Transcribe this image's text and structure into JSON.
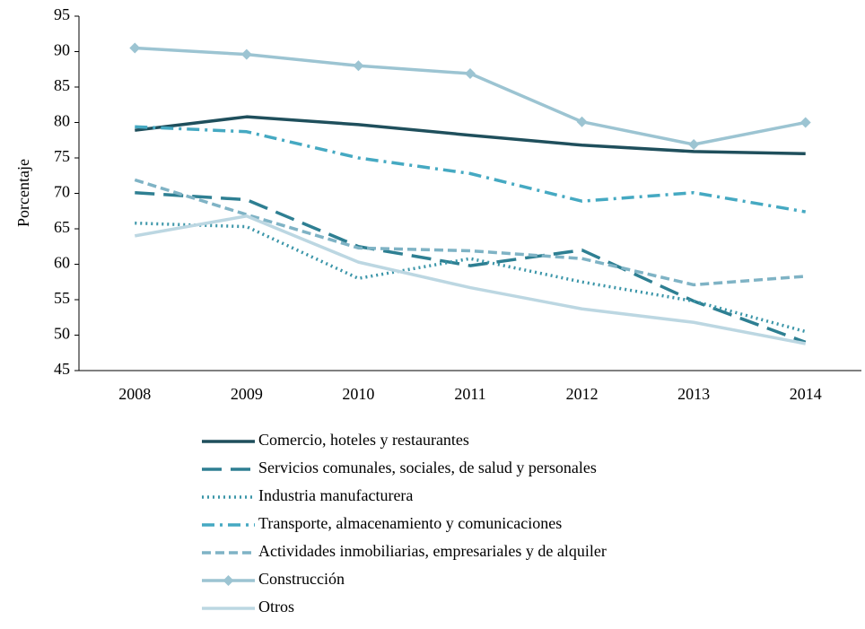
{
  "chart_data": {
    "type": "line",
    "y_label": "Porcentaje",
    "categories": [
      "2008",
      "2009",
      "2010",
      "2011",
      "2012",
      "2013",
      "2014"
    ],
    "ylim": [
      45,
      95
    ],
    "yticks": [
      45,
      50,
      55,
      60,
      65,
      70,
      75,
      80,
      85,
      90,
      95
    ],
    "grid": false,
    "legend": "bottom",
    "series": [
      {
        "name": "Comercio, hoteles y restaurantes",
        "color": "#1f4f5c",
        "style": "solid",
        "values": [
          78.9,
          80.8,
          79.7,
          78.2,
          76.8,
          75.9,
          75.6
        ]
      },
      {
        "name": "Servicios comunales, sociales, de salud y personales",
        "color": "#2e7f92",
        "style": "long-dash",
        "values": [
          70.1,
          69.1,
          62.5,
          59.8,
          62.0,
          54.8,
          49.0
        ]
      },
      {
        "name": "Industria manufacturera",
        "color": "#3a95a8",
        "style": "dot",
        "values": [
          65.8,
          65.3,
          58.0,
          60.8,
          57.5,
          54.8,
          50.5
        ]
      },
      {
        "name": "Transporte, almacenamiento y comunicaciones",
        "color": "#45a9c2",
        "style": "dash-dot",
        "values": [
          79.4,
          78.7,
          75.0,
          72.8,
          68.9,
          70.1,
          67.4
        ]
      },
      {
        "name": "Actividades inmobiliarias, empresariales y de alquiler",
        "color": "#7fb3c5",
        "style": "dash",
        "values": [
          71.9,
          67.0,
          62.3,
          61.9,
          60.8,
          57.1,
          58.3
        ]
      },
      {
        "name": "Construcción",
        "color": "#9cc4d2",
        "style": "solid",
        "marker": "diamond",
        "values": [
          90.5,
          89.6,
          88.0,
          86.9,
          80.1,
          76.9,
          80.0
        ]
      },
      {
        "name": "Otros",
        "color": "#bcd7e2",
        "style": "solid",
        "values": [
          64.0,
          66.8,
          60.3,
          56.7,
          53.7,
          51.8,
          48.8
        ]
      }
    ]
  }
}
